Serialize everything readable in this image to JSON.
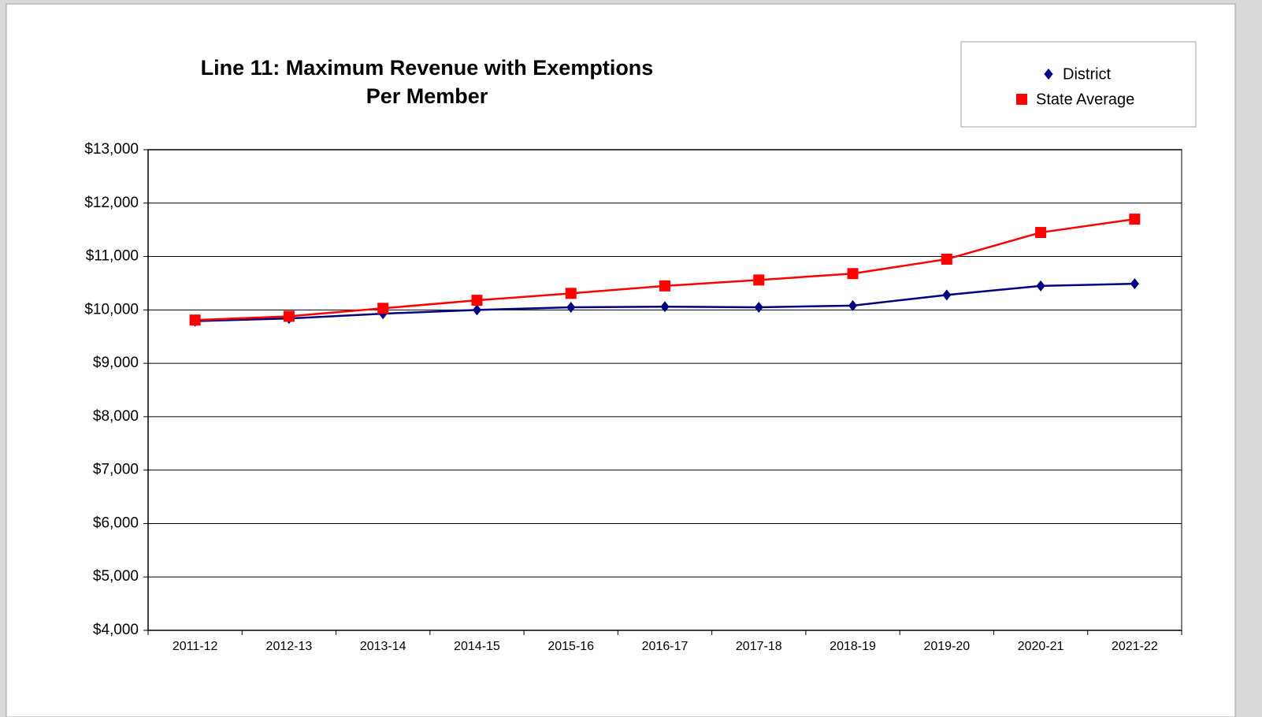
{
  "chart_data": {
    "type": "line",
    "title": [
      "Line 11: Maximum Revenue with Exemptions",
      "Per Member"
    ],
    "categories": [
      "2011-12",
      "2012-13",
      "2013-14",
      "2014-15",
      "2015-16",
      "2016-17",
      "2017-18",
      "2018-19",
      "2019-20",
      "2020-21",
      "2021-22"
    ],
    "series": [
      {
        "name": "District",
        "color": "#000080",
        "marker": "diamond",
        "values": [
          9790,
          9840,
          9930,
          10000,
          10050,
          10060,
          10050,
          10080,
          10280,
          10450,
          10490
        ]
      },
      {
        "name": "State Average",
        "color": "#ff0000",
        "marker": "square",
        "values": [
          9810,
          9880,
          10030,
          10180,
          10310,
          10450,
          10560,
          10680,
          10950,
          11450,
          11700
        ]
      }
    ],
    "ylim": [
      4000,
      13000
    ],
    "yticks": [
      {
        "value": 4000,
        "label": "$4,000"
      },
      {
        "value": 5000,
        "label": "$5,000"
      },
      {
        "value": 6000,
        "label": "$6,000"
      },
      {
        "value": 7000,
        "label": "$7,000"
      },
      {
        "value": 8000,
        "label": "$8,000"
      },
      {
        "value": 9000,
        "label": "$9,000"
      },
      {
        "value": 10000,
        "label": "$10,000"
      },
      {
        "value": 11000,
        "label": "$11,000"
      },
      {
        "value": 12000,
        "label": "$12,000"
      },
      {
        "value": 13000,
        "label": "$13,000"
      }
    ],
    "grid": true,
    "legend": "top-right"
  }
}
